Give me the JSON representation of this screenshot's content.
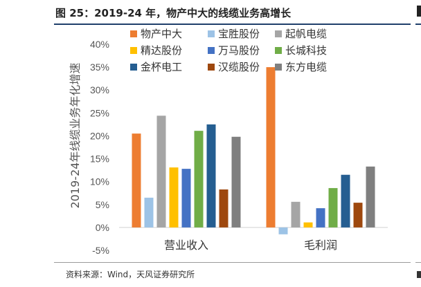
{
  "header": {
    "title": "图 25：2019-24 年，物产中大的线缆业务高增长"
  },
  "footer": {
    "source": "资料来源：Wind，天风证券研究所"
  },
  "chart_data": {
    "type": "bar",
    "title": "",
    "xlabel": "",
    "ylabel": "2019-24年线缆业务年化增速",
    "categories": [
      "营业收入",
      "毛利润"
    ],
    "ylim": [
      -5,
      40
    ],
    "yticks": [
      -5,
      0,
      5,
      10,
      15,
      20,
      25,
      30,
      35,
      40
    ],
    "ytick_labels": [
      "-5%",
      "0%",
      "5%",
      "10%",
      "15%",
      "20%",
      "25%",
      "30%",
      "35%",
      "40%"
    ],
    "grid": false,
    "legend_position": "top",
    "series": [
      {
        "name": "物产中大",
        "color": "#ED7D31",
        "values": [
          20.5,
          35.0
        ]
      },
      {
        "name": "宝胜股份",
        "color": "#9DC3E6",
        "values": [
          6.5,
          -1.5
        ]
      },
      {
        "name": "起帆电缆",
        "color": "#A5A5A5",
        "values": [
          24.4,
          5.6
        ]
      },
      {
        "name": "精达股份",
        "color": "#FFC000",
        "values": [
          13.1,
          1.1
        ]
      },
      {
        "name": "万马股份",
        "color": "#4472C4",
        "values": [
          12.8,
          4.2
        ]
      },
      {
        "name": "长城科技",
        "color": "#70AD47",
        "values": [
          21.1,
          8.6
        ]
      },
      {
        "name": "金杯电工",
        "color": "#255E91",
        "values": [
          22.5,
          11.5
        ]
      },
      {
        "name": "汉缆股份",
        "color": "#9E480E",
        "values": [
          8.3,
          5.4
        ]
      },
      {
        "name": "东方电缆",
        "color": "#7F7F7F",
        "values": [
          19.8,
          13.3
        ]
      }
    ]
  }
}
